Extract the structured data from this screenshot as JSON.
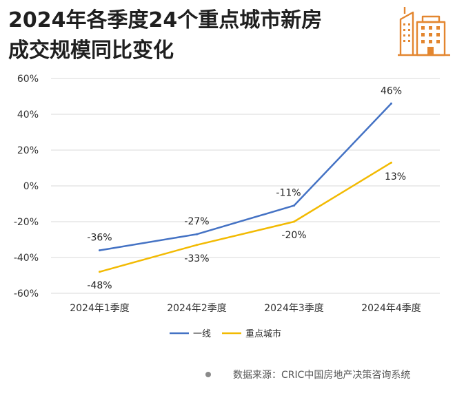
{
  "page": {
    "title_line1": "2024年各季度24个重点城市新房",
    "title_line2": "成交规模同比变化",
    "source": "数据来源：CRIC中国房地产决策咨询系统",
    "logo_icon": "building-icon",
    "accent_color": "#E3862F"
  },
  "chart_data": {
    "type": "line",
    "categories": [
      "2024年1季度",
      "2024年2季度",
      "2024年3季度",
      "2024年4季度"
    ],
    "series": [
      {
        "name": "一线",
        "values": [
          -36,
          -27,
          -11,
          46
        ],
        "labels": [
          "-36%",
          "-27%",
          "-11%",
          "46%"
        ],
        "color": "#4472C4"
      },
      {
        "name": "重点城市",
        "values": [
          -48,
          -33,
          -20,
          13
        ],
        "labels": [
          "-48%",
          "-33%",
          "-20%",
          "13%"
        ],
        "color": "#F2BA02"
      }
    ],
    "ylim": [
      -60,
      60
    ],
    "yticks": [
      -60,
      -40,
      -20,
      0,
      20,
      40,
      60
    ],
    "ytick_labels": [
      "-60%",
      "-40%",
      "-20%",
      "0%",
      "20%",
      "40%",
      "60%"
    ],
    "xlabel": "",
    "ylabel": "",
    "grid": "horizontal",
    "legend": "bottom"
  }
}
